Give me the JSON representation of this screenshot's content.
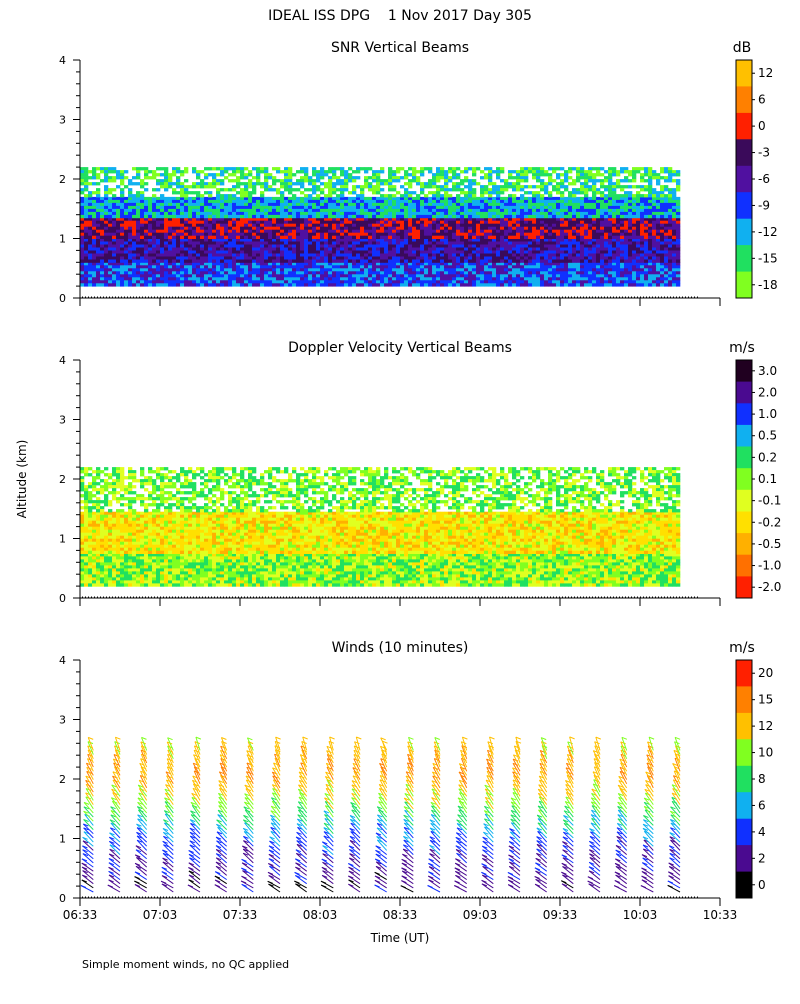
{
  "page_title": "IDEAL ISS DPG    1 Nov 2017 Day 305",
  "y_axis_label": "Altitude (km)",
  "x_axis_label": "Time (UT)",
  "footnote": "Simple moment winds, no QC applied",
  "time_ticks": [
    "06:33",
    "07:03",
    "07:33",
    "08:03",
    "08:33",
    "09:03",
    "09:33",
    "10:03",
    "10:33"
  ],
  "altitude_ticks": [
    "0",
    "1",
    "2",
    "3",
    "4"
  ],
  "chart_data": [
    {
      "type": "heatmap",
      "title": "SNR Vertical Beams",
      "xlabel": "",
      "ylabel": "Altitude (km)",
      "xlim": [
        "06:33",
        "10:33"
      ],
      "ylim": [
        0,
        4
      ],
      "colorbar": {
        "unit": "dB",
        "tick_labels": [
          "12",
          "6",
          "0",
          "-3",
          "-6",
          "-9",
          "-12",
          "-15",
          "-18"
        ],
        "bin_colors": [
          "#ffc000",
          "#ff8000",
          "#ff2000",
          "#3a0a5a",
          "#5010a0",
          "#1030ff",
          "#10b0f0",
          "#20e060",
          "#80ff20"
        ]
      },
      "data_extent": {
        "start": "06:33",
        "end": "10:18"
      },
      "layers": [
        {
          "altitude_km": [
            0.2,
            0.6
          ],
          "value_db": -9
        },
        {
          "altitude_km": [
            0.6,
            1.0
          ],
          "value_db": -6
        },
        {
          "altitude_km": [
            1.0,
            1.35
          ],
          "value_db": -3
        },
        {
          "altitude_km": [
            1.35,
            1.7
          ],
          "value_db": -12
        },
        {
          "altitude_km": [
            1.7,
            2.2
          ],
          "value_db": -15
        }
      ]
    },
    {
      "type": "heatmap",
      "title": "Doppler Velocity Vertical Beams",
      "xlabel": "",
      "ylabel": "Altitude (km)",
      "xlim": [
        "06:33",
        "10:33"
      ],
      "ylim": [
        0,
        4
      ],
      "colorbar": {
        "unit": "m/s",
        "tick_labels": [
          "3.0",
          "2.0",
          "1.0",
          "0.5",
          "0.2",
          "0.1",
          "-0.1",
          "-0.2",
          "-0.5",
          "-1.0",
          "-2.0"
        ],
        "bin_colors": [
          "#200020",
          "#4a0a90",
          "#1030ff",
          "#10b0f0",
          "#20e060",
          "#80ff20",
          "#e0ff20",
          "#ffe000",
          "#ffb000",
          "#ff7000",
          "#ff2000"
        ]
      },
      "data_extent": {
        "start": "06:33",
        "end": "10:18"
      },
      "layers": [
        {
          "altitude_km": [
            0.2,
            0.75
          ],
          "value_ms": 0.05
        },
        {
          "altitude_km": [
            0.75,
            1.45
          ],
          "value_ms": -0.2
        },
        {
          "altitude_km": [
            1.45,
            2.2
          ],
          "value_ms": 0.1
        }
      ]
    },
    {
      "type": "scatter",
      "subtype": "wind_barbs",
      "title": "Winds (10 minutes)",
      "xlabel": "Time (UT)",
      "ylabel": "Altitude (km)",
      "xlim": [
        "06:33",
        "10:33"
      ],
      "ylim": [
        0,
        4
      ],
      "colorbar": {
        "unit": "m/s",
        "tick_labels": [
          "20",
          "15",
          "12",
          "10",
          "8",
          "6",
          "4",
          "2",
          "0"
        ],
        "bin_colors": [
          "#ff2000",
          "#ff8000",
          "#ffc000",
          "#80ff20",
          "#20e060",
          "#10b0f0",
          "#1030ff",
          "#4a0a90",
          "#000000"
        ]
      },
      "profile_times": [
        "06:38",
        "06:48",
        "06:58",
        "07:08",
        "07:18",
        "07:28",
        "07:38",
        "07:48",
        "07:58",
        "08:08",
        "08:18",
        "08:28",
        "08:38",
        "08:48",
        "08:58",
        "09:08",
        "09:18",
        "09:28",
        "09:38",
        "09:48",
        "09:58",
        "10:08",
        "10:18"
      ],
      "speed_by_altitude": [
        {
          "altitude_km": 0.2,
          "speed_ms": 2
        },
        {
          "altitude_km": 0.6,
          "speed_ms": 3
        },
        {
          "altitude_km": 1.0,
          "speed_ms": 5
        },
        {
          "altitude_km": 1.3,
          "speed_ms": 8
        },
        {
          "altitude_km": 1.6,
          "speed_ms": 11
        },
        {
          "altitude_km": 2.0,
          "speed_ms": 14
        },
        {
          "altitude_km": 2.4,
          "speed_ms": 12
        }
      ]
    }
  ]
}
